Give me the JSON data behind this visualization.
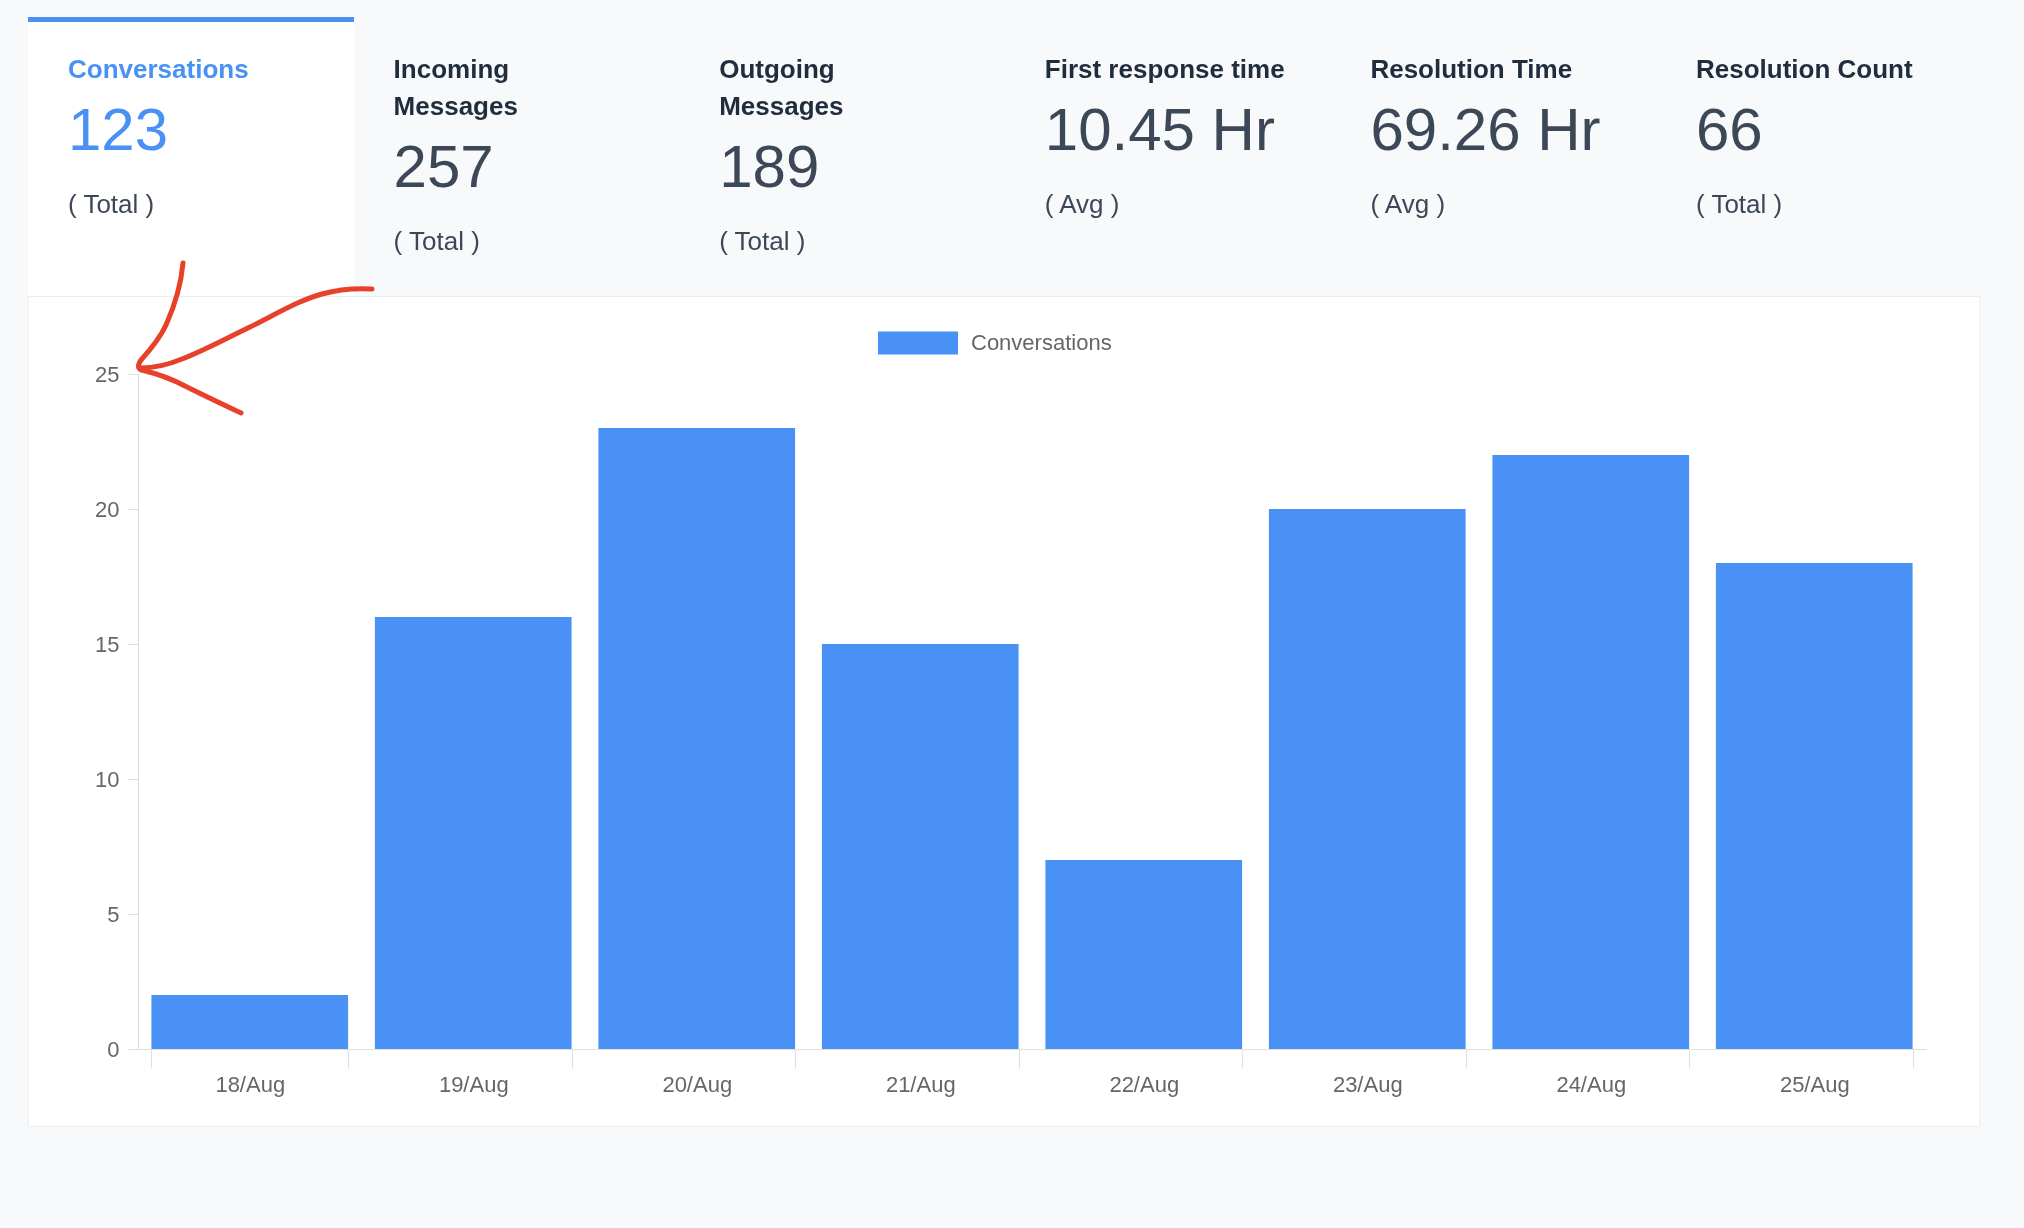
{
  "chart_data": [
    {
      "type": "other",
      "annotations": [
        "Conversations",
        "123",
        "( Total )",
        "Incoming Messages",
        "257",
        "( Total )",
        "Outgoing Messages",
        "189",
        "( Total )",
        "First response time",
        "10.45 Hr",
        "( Avg )",
        "Resolution Time",
        "69.26 Hr",
        "( Avg )",
        "Resolution Count",
        "66",
        "( Total )"
      ]
    },
    {
      "type": "bar",
      "categories": [
        "18/Aug",
        "19/Aug",
        "20/Aug",
        "21/Aug",
        "22/Aug",
        "23/Aug",
        "24/Aug",
        "25/Aug"
      ],
      "series": [
        {
          "name": "Conversations",
          "color": "#4a91f5",
          "values": [
            2,
            16,
            23,
            15,
            7,
            20,
            22,
            18
          ]
        }
      ],
      "ylim": [
        0,
        25
      ],
      "yticks": [
        0,
        5,
        10,
        15,
        20,
        25
      ],
      "legend": "top"
    }
  ]
}
